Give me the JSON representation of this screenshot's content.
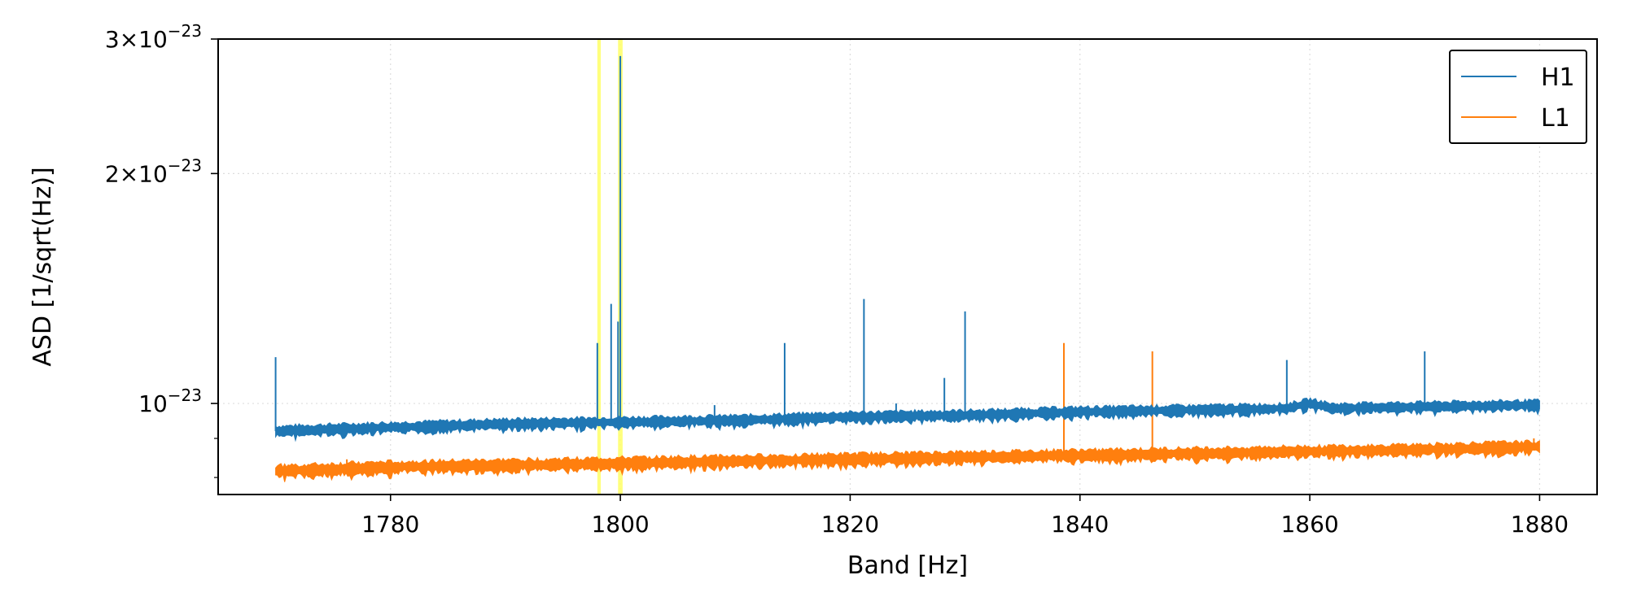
{
  "chart_data": {
    "type": "line",
    "xlabel": "Band [Hz]",
    "ylabel": "ASD [1/sqrt(Hz)]",
    "xlim": [
      1765,
      1885
    ],
    "ylim": [
      7.6e-24,
      3e-23
    ],
    "yscale": "log",
    "grid": true,
    "legend_placement": "top-right",
    "x_ticks": [
      {
        "value": 1780,
        "label": "1780"
      },
      {
        "value": 1800,
        "label": "1800"
      },
      {
        "value": 1820,
        "label": "1820"
      },
      {
        "value": 1840,
        "label": "1840"
      },
      {
        "value": 1860,
        "label": "1860"
      },
      {
        "value": 1880,
        "label": "1880"
      }
    ],
    "y_major_ticks": [
      {
        "value": 1e-23,
        "mantissa": "",
        "exp": "−23"
      },
      {
        "value": 2e-23,
        "mantissa": "2×",
        "exp": "−23"
      },
      {
        "value": 3e-23,
        "mantissa": "3×",
        "exp": "−23"
      }
    ],
    "y_minor_ticks": [
      8e-24,
      9e-24
    ],
    "highlight_bands": [
      {
        "x0": 1798.0,
        "x1": 1798.3
      },
      {
        "x0": 1799.8,
        "x1": 1800.2
      }
    ],
    "series": [
      {
        "name": "H1",
        "color": "#1f77b4",
        "x": [
          1770,
          1780,
          1790,
          1800,
          1810,
          1820,
          1830,
          1840,
          1850,
          1858,
          1860,
          1862,
          1870,
          1880
        ],
        "y": [
          9.2e-24,
          9.3e-24,
          9.4e-24,
          9.45e-24,
          9.5e-24,
          9.6e-24,
          9.65e-24,
          9.75e-24,
          9.8e-24,
          9.85e-24,
          1e-23,
          9.85e-24,
          9.9e-24,
          9.95e-24
        ],
        "band_half_width": 1.2e-25,
        "lines": [
          {
            "x": 1770.0,
            "y": 1.15e-23
          },
          {
            "x": 1798.0,
            "y": 1.2e-23
          },
          {
            "x": 1799.2,
            "y": 1.35e-23
          },
          {
            "x": 1799.8,
            "y": 1.28e-23
          },
          {
            "x": 1800.0,
            "y": 2.85e-23
          },
          {
            "x": 1808.2,
            "y": 9.95e-24
          },
          {
            "x": 1814.3,
            "y": 1.2e-23
          },
          {
            "x": 1821.2,
            "y": 1.37e-23
          },
          {
            "x": 1824.0,
            "y": 1e-23
          },
          {
            "x": 1828.2,
            "y": 1.08e-23
          },
          {
            "x": 1830.0,
            "y": 1.32e-23
          },
          {
            "x": 1858.0,
            "y": 1.14e-23
          },
          {
            "x": 1870.0,
            "y": 1.17e-23
          }
        ]
      },
      {
        "name": "L1",
        "color": "#ff7f0e",
        "x": [
          1770,
          1780,
          1790,
          1800,
          1810,
          1820,
          1830,
          1840,
          1850,
          1860,
          1870,
          1880
        ],
        "y": [
          8.15e-24,
          8.25e-24,
          8.3e-24,
          8.35e-24,
          8.4e-24,
          8.45e-24,
          8.5e-24,
          8.55e-24,
          8.6e-24,
          8.65e-24,
          8.7e-24,
          8.78e-24
        ],
        "band_half_width": 1.2e-25,
        "lines": [
          {
            "x": 1776.2,
            "y": 8.45e-24
          },
          {
            "x": 1838.6,
            "y": 1.2e-23
          },
          {
            "x": 1846.3,
            "y": 1.17e-23
          },
          {
            "x": 1879.5,
            "y": 9e-24
          }
        ]
      }
    ]
  }
}
